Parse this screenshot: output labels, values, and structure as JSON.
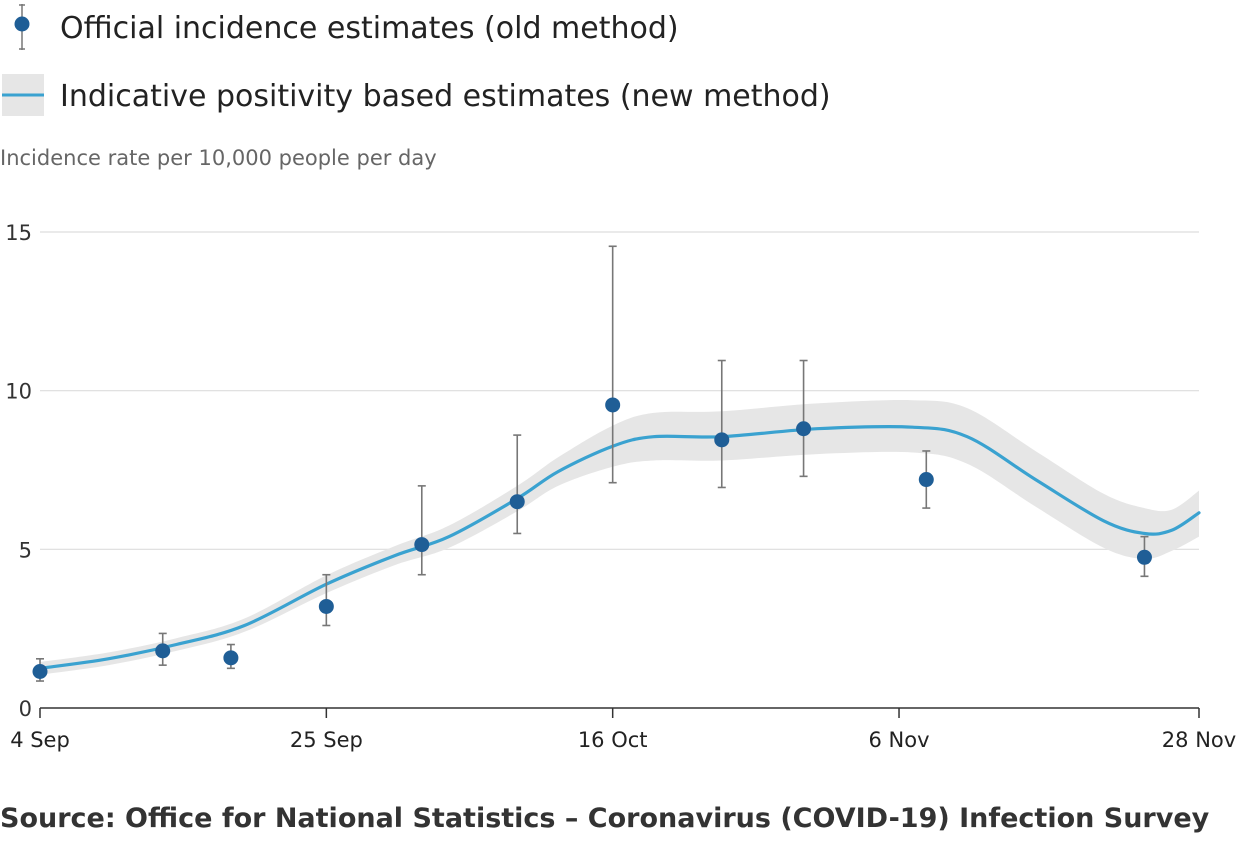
{
  "chart_data": {
    "type": "line",
    "ylabel": "Incidence rate per 10,000 people per day",
    "ylim": [
      0,
      15
    ],
    "yticks": [
      "0",
      "5",
      "10",
      "15"
    ],
    "x_tick_labels": [
      "4 Sep",
      "25 Sep",
      "16 Oct",
      "6 Nov",
      "28 Nov"
    ],
    "grid": true,
    "legend_placement": "top-left",
    "colors": {
      "points": "#1f5e96",
      "line": "#3aa2d0",
      "band": "#e6e6e6",
      "error_bars": "#777777",
      "grid": "#dddddd"
    },
    "series": [
      {
        "name": "Official incidence estimates (old method)",
        "kind": "points-with-error-bars",
        "points": [
          {
            "date": "2020-09-04",
            "y": 1.15,
            "low": 0.85,
            "high": 1.55
          },
          {
            "date": "2020-09-13",
            "y": 1.8,
            "low": 1.35,
            "high": 2.35
          },
          {
            "date": "2020-09-18",
            "y": 1.58,
            "low": 1.25,
            "high": 2.0
          },
          {
            "date": "2020-09-25",
            "y": 3.2,
            "low": 2.6,
            "high": 4.2
          },
          {
            "date": "2020-10-02",
            "y": 5.15,
            "low": 4.2,
            "high": 7.0
          },
          {
            "date": "2020-10-09",
            "y": 6.5,
            "low": 5.5,
            "high": 8.6
          },
          {
            "date": "2020-10-16",
            "y": 9.55,
            "low": 7.1,
            "high": 14.55
          },
          {
            "date": "2020-10-24",
            "y": 8.45,
            "low": 6.95,
            "high": 10.95
          },
          {
            "date": "2020-10-30",
            "y": 8.8,
            "low": 7.3,
            "high": 10.95
          },
          {
            "date": "2020-11-08",
            "y": 7.2,
            "low": 6.3,
            "high": 8.1
          },
          {
            "date": "2020-11-24",
            "y": 4.75,
            "low": 4.15,
            "high": 5.4
          }
        ]
      },
      {
        "name": "Indicative positivity based estimates (new method)",
        "kind": "line-with-band",
        "points": [
          {
            "date": "2020-09-04",
            "y": 1.25,
            "low": 1.05,
            "high": 1.45
          },
          {
            "date": "2020-09-09",
            "y": 1.55,
            "low": 1.35,
            "high": 1.75
          },
          {
            "date": "2020-09-14",
            "y": 2.0,
            "low": 1.8,
            "high": 2.2
          },
          {
            "date": "2020-09-19",
            "y": 2.6,
            "low": 2.4,
            "high": 2.82
          },
          {
            "date": "2020-09-25",
            "y": 3.9,
            "low": 3.62,
            "high": 4.18
          },
          {
            "date": "2020-09-30",
            "y": 4.8,
            "low": 4.5,
            "high": 5.1
          },
          {
            "date": "2020-10-04",
            "y": 5.4,
            "low": 5.05,
            "high": 5.75
          },
          {
            "date": "2020-10-09",
            "y": 6.6,
            "low": 6.2,
            "high": 7.0
          },
          {
            "date": "2020-10-12",
            "y": 7.45,
            "low": 7.0,
            "high": 7.9
          },
          {
            "date": "2020-10-16",
            "y": 8.25,
            "low": 7.6,
            "high": 8.9
          },
          {
            "date": "2020-10-19",
            "y": 8.55,
            "low": 7.8,
            "high": 9.3
          },
          {
            "date": "2020-10-24",
            "y": 8.55,
            "low": 7.8,
            "high": 9.35
          },
          {
            "date": "2020-10-31",
            "y": 8.8,
            "low": 8.0,
            "high": 9.6
          },
          {
            "date": "2020-11-07",
            "y": 8.85,
            "low": 8.05,
            "high": 9.7
          },
          {
            "date": "2020-11-11",
            "y": 8.55,
            "low": 7.7,
            "high": 9.45
          },
          {
            "date": "2020-11-16",
            "y": 7.2,
            "low": 6.35,
            "high": 8.1
          },
          {
            "date": "2020-11-21",
            "y": 5.9,
            "low": 5.05,
            "high": 6.75
          },
          {
            "date": "2020-11-24",
            "y": 5.5,
            "low": 4.7,
            "high": 6.3
          },
          {
            "date": "2020-11-26",
            "y": 5.6,
            "low": 4.95,
            "high": 6.25
          },
          {
            "date": "2020-11-28",
            "y": 6.15,
            "low": 5.4,
            "high": 6.85
          }
        ]
      }
    ]
  },
  "source": "Source: Office for National Statistics – Coronavirus (COVID-19) Infection Survey"
}
